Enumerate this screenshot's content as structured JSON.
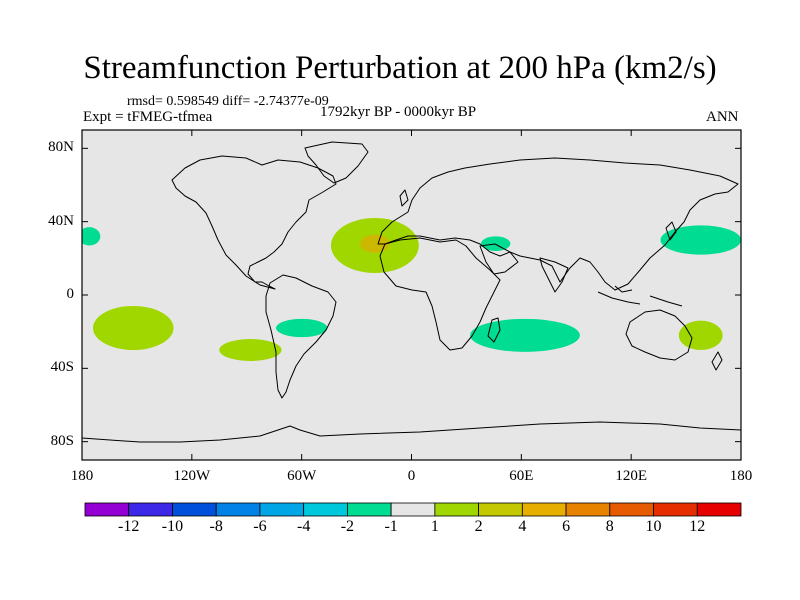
{
  "title": "Streamfunction Perturbation at 200 hPa (km2/s)",
  "stats": "rmsd= 0.598549 diff= -2.74377e-09",
  "experiment": "Expt = tFMEG-tfmea",
  "period": "1792kyr BP - 0000kyr BP",
  "season": "ANN",
  "map": {
    "projection": "cylindrical equidistant",
    "lon_range": [
      -180,
      180
    ],
    "lat_range": [
      -90,
      90
    ],
    "background_color": "#e6e6e6",
    "x_ticks": [
      {
        "lon": -180,
        "label": "180"
      },
      {
        "lon": -120,
        "label": "120W"
      },
      {
        "lon": -60,
        "label": "60W"
      },
      {
        "lon": 0,
        "label": "0"
      },
      {
        "lon": 60,
        "label": "60E"
      },
      {
        "lon": 120,
        "label": "120E"
      },
      {
        "lon": 180,
        "label": "180"
      }
    ],
    "y_ticks": [
      {
        "lat": 80,
        "label": "80N"
      },
      {
        "lat": 40,
        "label": "40N"
      },
      {
        "lat": 0,
        "label": "0"
      },
      {
        "lat": -40,
        "label": "40S"
      },
      {
        "lat": -80,
        "label": "80S"
      }
    ],
    "anomalies": [
      {
        "name": "north-atlantic-positive",
        "lon": -20,
        "lat": 27,
        "lon_radius": 24,
        "lat_radius": 15,
        "color": "#a0d700"
      },
      {
        "name": "north-atlantic-core",
        "lon": -20,
        "lat": 28,
        "lon_radius": 8,
        "lat_radius": 5,
        "color": "#cdb800"
      },
      {
        "name": "east-pacific-positive",
        "lon": -152,
        "lat": -18,
        "lon_radius": 22,
        "lat_radius": 12,
        "color": "#a0d700"
      },
      {
        "name": "south-pacific-positive",
        "lon": -88,
        "lat": -30,
        "lon_radius": 17,
        "lat_radius": 6,
        "color": "#a0d700"
      },
      {
        "name": "australia-positive",
        "lon": 158,
        "lat": -22,
        "lon_radius": 12,
        "lat_radius": 8,
        "color": "#a0d700"
      },
      {
        "name": "dateline-negative",
        "lon": -176,
        "lat": 32,
        "lon_radius": 6,
        "lat_radius": 5,
        "color": "#00dc91"
      },
      {
        "name": "arabia-negative",
        "lon": 46,
        "lat": 28,
        "lon_radius": 8,
        "lat_radius": 4,
        "color": "#00dc91"
      },
      {
        "name": "west-pacific-negative",
        "lon": 158,
        "lat": 30,
        "lon_radius": 22,
        "lat_radius": 8,
        "color": "#00dc91"
      },
      {
        "name": "south-america-negative",
        "lon": -60,
        "lat": -18,
        "lon_radius": 14,
        "lat_radius": 5,
        "color": "#00dc91"
      },
      {
        "name": "indian-ocean-negative",
        "lon": 62,
        "lat": -22,
        "lon_radius": 30,
        "lat_radius": 9,
        "color": "#00dc91"
      }
    ]
  },
  "colorbar": {
    "colors": [
      "#9400d3",
      "#3c28e6",
      "#0050dc",
      "#0082e6",
      "#00a5e6",
      "#00c8dc",
      "#00dc91",
      "#e6e6e6",
      "#a0d700",
      "#c3c800",
      "#e6af00",
      "#e68200",
      "#e65a00",
      "#e62d00",
      "#e60000"
    ],
    "labels": [
      "-12",
      "-10",
      "-8",
      "-6",
      "-4",
      "-2",
      "-1",
      "1",
      "2",
      "4",
      "6",
      "8",
      "10",
      "12"
    ]
  },
  "colors": {
    "frame": "#000000",
    "coastline": "#000000"
  }
}
